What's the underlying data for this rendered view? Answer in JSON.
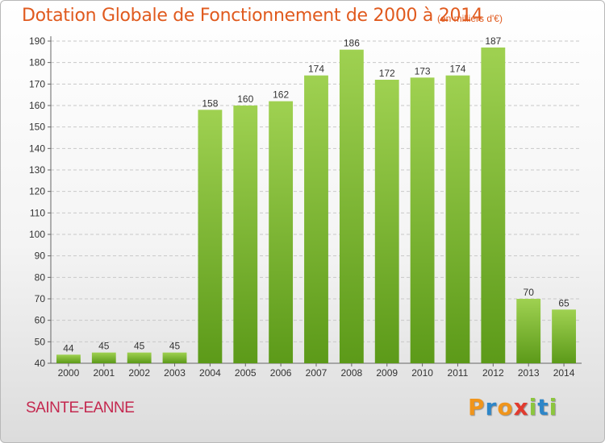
{
  "title": "Dotation Globale de Fonctionnement de 2000 à 2014",
  "subtitle": "(en milliers d'€)",
  "commune": "SAINTE-EANNE",
  "brand": {
    "letters": [
      "P",
      "r",
      "o",
      "x",
      "i",
      "t",
      "i"
    ],
    "colors": [
      "#f0951c",
      "#2e86c8",
      "#f0951c",
      "#e13b2f",
      "#8cc63e",
      "#2e86c8",
      "#8cc63e"
    ]
  },
  "colors": {
    "title": "#e05a1e",
    "commune": "#c4284f",
    "bar_top": "#9fd151",
    "bar_bottom": "#5c9a19",
    "grid": "#c8c8c8"
  },
  "chart_data": {
    "type": "bar",
    "title": "Dotation Globale de Fonctionnement de 2000 à 2014",
    "subtitle": "(en milliers d'€)",
    "categories": [
      "2000",
      "2001",
      "2002",
      "2003",
      "2004",
      "2005",
      "2006",
      "2007",
      "2008",
      "2009",
      "2010",
      "2011",
      "2012",
      "2013",
      "2014"
    ],
    "values": [
      44,
      45,
      45,
      45,
      158,
      160,
      162,
      174,
      186,
      172,
      173,
      174,
      187,
      70,
      65
    ],
    "ylim": [
      40,
      190
    ],
    "yticks": [
      40,
      50,
      60,
      70,
      80,
      90,
      100,
      110,
      120,
      130,
      140,
      150,
      160,
      170,
      180,
      190
    ],
    "grid": true,
    "xlabel": "",
    "ylabel": ""
  }
}
